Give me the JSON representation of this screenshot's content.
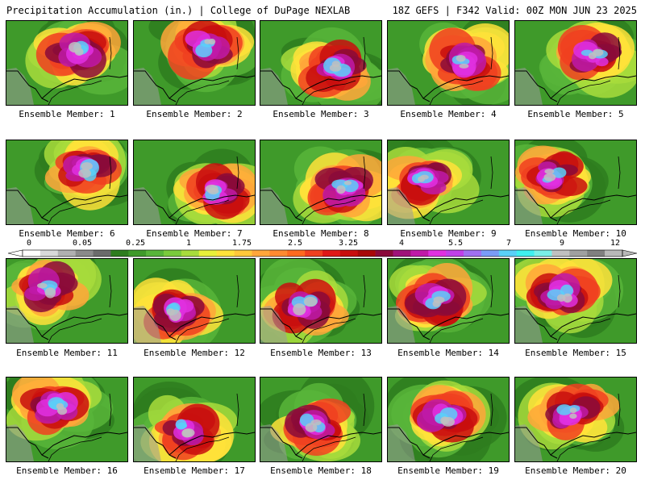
{
  "header": {
    "title": "Precipitation Accumulation (in.) | College of DuPage NEXLAB",
    "run_info": "18Z GEFS | F342 Valid: 00Z MON JUN 23 2025"
  },
  "colorbar": {
    "labels": [
      "0",
      "0.05",
      "0.25",
      "1",
      "1.75",
      "2.5",
      "3.25",
      "4",
      "5.5",
      "7",
      "9",
      "12"
    ],
    "colors": [
      "#ffffff",
      "#d9d9d9",
      "#b0b0b0",
      "#8a8a8a",
      "#6b6b6b",
      "#2e7d1e",
      "#3f9a2a",
      "#58b53a",
      "#7acb3c",
      "#a8dc3c",
      "#e8f03a",
      "#ffe23a",
      "#ffc83a",
      "#ffa63a",
      "#ff8a30",
      "#ff6a20",
      "#f04020",
      "#e01818",
      "#c80e0e",
      "#a80808",
      "#8a0a3a",
      "#a0127a",
      "#c01aa8",
      "#e030e0",
      "#c040e8",
      "#a070f0",
      "#7a9cf8",
      "#5ad0f8",
      "#40f0f0",
      "#7af0e8",
      "#c0c0c0",
      "#a0a0a0",
      "#808080",
      "#b8b8b8"
    ]
  },
  "panels": [
    {
      "label": "Ensemble Member: 1"
    },
    {
      "label": "Ensemble Member: 2"
    },
    {
      "label": "Ensemble Member: 3"
    },
    {
      "label": "Ensemble Member: 4"
    },
    {
      "label": "Ensemble Member: 5"
    },
    {
      "label": "Ensemble Member: 6"
    },
    {
      "label": "Ensemble Member: 7"
    },
    {
      "label": "Ensemble Member: 8"
    },
    {
      "label": "Ensemble Member: 9"
    },
    {
      "label": "Ensemble Member: 10"
    },
    {
      "label": "Ensemble Member: 11"
    },
    {
      "label": "Ensemble Member: 12"
    },
    {
      "label": "Ensemble Member: 13"
    },
    {
      "label": "Ensemble Member: 14"
    },
    {
      "label": "Ensemble Member: 15"
    },
    {
      "label": "Ensemble Member: 16"
    },
    {
      "label": "Ensemble Member: 17"
    },
    {
      "label": "Ensemble Member: 18"
    },
    {
      "label": "Ensemble Member: 19"
    },
    {
      "label": "Ensemble Member: 20"
    }
  ]
}
